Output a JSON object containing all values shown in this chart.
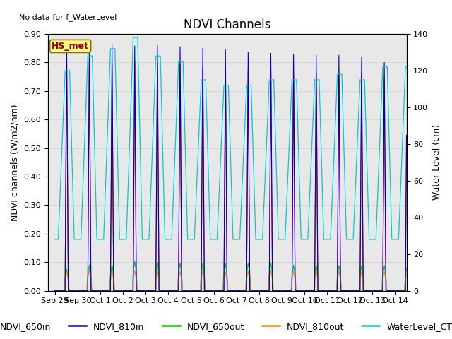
{
  "title": "NDVI Channels",
  "no_data_text": "No data for f_WaterLevel",
  "station_label": "HS_met",
  "ylabel_left": "NDVI channels (W/m2/nm)",
  "ylabel_right": "Water Level (cm)",
  "ylim_left": [
    0.0,
    0.9
  ],
  "ylim_right": [
    0,
    140
  ],
  "xtick_labels": [
    "Sep 29",
    "Sep 30",
    "Oct 1",
    "Oct 2",
    "Oct 3",
    "Oct 4",
    "Oct 5",
    "Oct 6",
    "Oct 7",
    "Oct 8",
    "Oct 9",
    "Oct 10",
    "Oct 11",
    "Oct 12",
    "Oct 13",
    "Oct 14"
  ],
  "xtick_positions": [
    0,
    1,
    2,
    3,
    4,
    5,
    6,
    7,
    8,
    9,
    10,
    11,
    12,
    13,
    14,
    15
  ],
  "grid_color": "#d8d8d8",
  "background_color": "#e8e8e8",
  "colors": {
    "NDVI_650in": "#cc0000",
    "NDVI_810in": "#0000cc",
    "NDVI_650out": "#00cc00",
    "NDVI_810out": "#ff8800",
    "WaterLevel_CTD_cm": "#00cccc"
  },
  "title_fontsize": 12,
  "label_fontsize": 9,
  "tick_fontsize": 8,
  "legend_fontsize": 9,
  "figsize": [
    6.4,
    4.8
  ],
  "dpi": 100
}
